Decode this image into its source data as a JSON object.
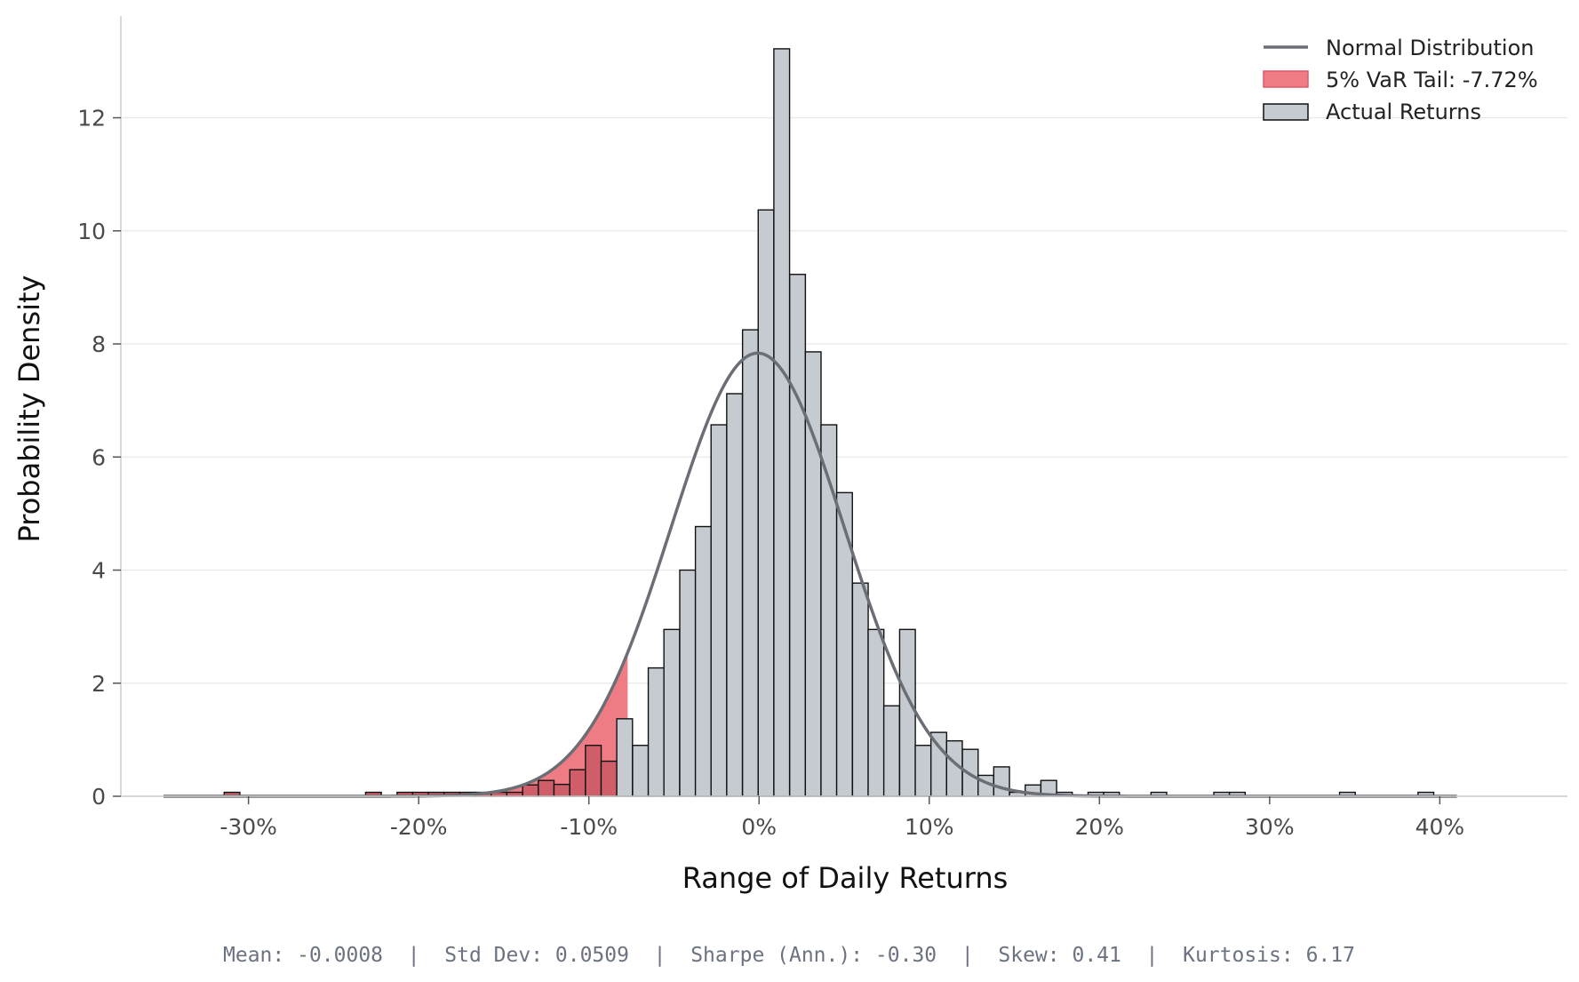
{
  "chart_data": {
    "type": "bar",
    "subtype": "histogram",
    "xlabel": "Range of Daily Returns",
    "ylabel": "Probability Density",
    "xlim": [
      -0.375,
      0.475
    ],
    "ylim": [
      0,
      13.8
    ],
    "x_tick_values": [
      -0.3,
      -0.2,
      -0.1,
      0.0,
      0.1,
      0.2,
      0.3,
      0.4
    ],
    "x_tick_labels": [
      "-30%",
      "-20%",
      "-10%",
      "0%",
      "10%",
      "20%",
      "30%",
      "40%"
    ],
    "y_tick_values": [
      0,
      2,
      4,
      6,
      8,
      10,
      12
    ],
    "y_tick_labels": [
      "0",
      "2",
      "4",
      "6",
      "8",
      "10",
      "12"
    ],
    "grid": "horizontal",
    "legend_position": "top-right",
    "colors": {
      "bar_fill": "#c6cad1",
      "bar_edge": "#111111",
      "tail_fill": "#ef7b84",
      "tail_bar_fill": "#d05e69",
      "curve": "#6b6e75",
      "grid": "#e8e8e8",
      "axis": "#cccccc"
    },
    "histogram": {
      "bin_width": 0.00923,
      "bins": [
        {
          "x0": -0.3143,
          "density": 0.07
        },
        {
          "x0": -0.2312,
          "density": 0.07
        },
        {
          "x0": -0.2127,
          "density": 0.07
        },
        {
          "x0": -0.2035,
          "density": 0.07
        },
        {
          "x0": -0.1943,
          "density": 0.07
        },
        {
          "x0": -0.1851,
          "density": 0.07
        },
        {
          "x0": -0.1758,
          "density": 0.07
        },
        {
          "x0": -0.1666,
          "density": 0.07
        },
        {
          "x0": -0.1574,
          "density": 0.07
        },
        {
          "x0": -0.1482,
          "density": 0.07
        },
        {
          "x0": -0.1389,
          "density": 0.2
        },
        {
          "x0": -0.1297,
          "density": 0.28
        },
        {
          "x0": -0.1205,
          "density": 0.21
        },
        {
          "x0": -0.1112,
          "density": 0.47
        },
        {
          "x0": -0.102,
          "density": 0.9
        },
        {
          "x0": -0.0928,
          "density": 0.62
        },
        {
          "x0": -0.0836,
          "density": 1.37
        },
        {
          "x0": -0.0743,
          "density": 0.9
        },
        {
          "x0": -0.0651,
          "density": 2.27
        },
        {
          "x0": -0.0559,
          "density": 2.95
        },
        {
          "x0": -0.0466,
          "density": 4.0
        },
        {
          "x0": -0.0374,
          "density": 4.77
        },
        {
          "x0": -0.0282,
          "density": 6.57
        },
        {
          "x0": -0.019,
          "density": 7.12
        },
        {
          "x0": -0.0097,
          "density": 8.25
        },
        {
          "x0": -0.0005,
          "density": 10.37
        },
        {
          "x0": 0.0087,
          "density": 13.22
        },
        {
          "x0": 0.018,
          "density": 9.23
        },
        {
          "x0": 0.0272,
          "density": 7.86
        },
        {
          "x0": 0.0364,
          "density": 6.57
        },
        {
          "x0": 0.0456,
          "density": 5.37
        },
        {
          "x0": 0.0549,
          "density": 3.77
        },
        {
          "x0": 0.0641,
          "density": 2.95
        },
        {
          "x0": 0.0733,
          "density": 1.6
        },
        {
          "x0": 0.0826,
          "density": 2.95
        },
        {
          "x0": 0.0918,
          "density": 0.9
        },
        {
          "x0": 0.101,
          "density": 1.13
        },
        {
          "x0": 0.1102,
          "density": 0.98
        },
        {
          "x0": 0.1195,
          "density": 0.83
        },
        {
          "x0": 0.1287,
          "density": 0.37
        },
        {
          "x0": 0.1379,
          "density": 0.52
        },
        {
          "x0": 0.1472,
          "density": 0.07
        },
        {
          "x0": 0.1564,
          "density": 0.2
        },
        {
          "x0": 0.1656,
          "density": 0.28
        },
        {
          "x0": 0.1748,
          "density": 0.07
        },
        {
          "x0": 0.1933,
          "density": 0.07
        },
        {
          "x0": 0.2025,
          "density": 0.07
        },
        {
          "x0": 0.2303,
          "density": 0.07
        },
        {
          "x0": 0.2672,
          "density": 0.07
        },
        {
          "x0": 0.2764,
          "density": 0.07
        },
        {
          "x0": 0.3411,
          "density": 0.07
        },
        {
          "x0": 0.3872,
          "density": 0.07
        }
      ]
    },
    "normal_curve": {
      "mean": -0.0008,
      "std": 0.0509,
      "x_range": [
        -0.35,
        0.41
      ]
    },
    "var_tail": {
      "threshold": -0.0772,
      "label": "5% VaR Tail: -7.72%"
    },
    "legend": [
      {
        "label": "Normal Distribution",
        "kind": "line"
      },
      {
        "label": "5% VaR Tail: -7.72%",
        "kind": "tail"
      },
      {
        "label": "Actual Returns",
        "kind": "bar"
      }
    ],
    "stats_line": "Mean: -0.0008  |  Std Dev: 0.0509  |  Sharpe (Ann.): -0.30  |  Skew: 0.41  |  Kurtosis: 6.17"
  }
}
